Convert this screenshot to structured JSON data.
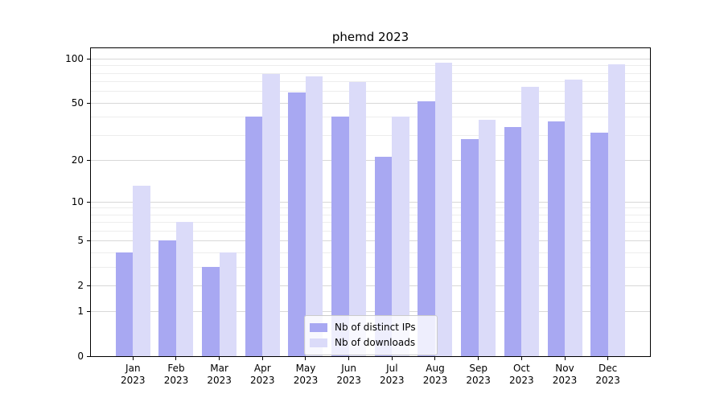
{
  "chart_data": {
    "type": "bar",
    "title": "phemd 2023",
    "categories": [
      "Jan",
      "Feb",
      "Mar",
      "Apr",
      "May",
      "Jun",
      "Jul",
      "Aug",
      "Sep",
      "Oct",
      "Nov",
      "Dec"
    ],
    "category_year": "2023",
    "series": [
      {
        "name": "Nb of distinct IPs",
        "color": "#a8a8f2",
        "values": [
          4,
          5,
          3,
          40,
          59,
          40,
          21,
          51,
          28,
          34,
          37,
          31
        ]
      },
      {
        "name": "Nb of downloads",
        "color": "#dbdbf9",
        "values": [
          13,
          7,
          4,
          79,
          76,
          69,
          40,
          94,
          38,
          64,
          72,
          92
        ]
      }
    ],
    "y_axis": {
      "scale": "log1p",
      "tick_values": [
        100,
        50,
        20,
        10,
        5,
        2,
        1,
        0
      ],
      "tick_labels": [
        "100",
        "50",
        "20",
        "10",
        "5",
        "2",
        "1",
        "0"
      ],
      "minor_tick_values": [
        3,
        4,
        6,
        7,
        8,
        9,
        30,
        40,
        60,
        70,
        80,
        90
      ],
      "range": [
        0,
        120
      ]
    },
    "grid": true,
    "legend_position": "lower center",
    "colors": {
      "major_grid": "#d8d8d8",
      "minor_grid": "#ededed",
      "axis": "#000000",
      "background": "#ffffff"
    }
  }
}
